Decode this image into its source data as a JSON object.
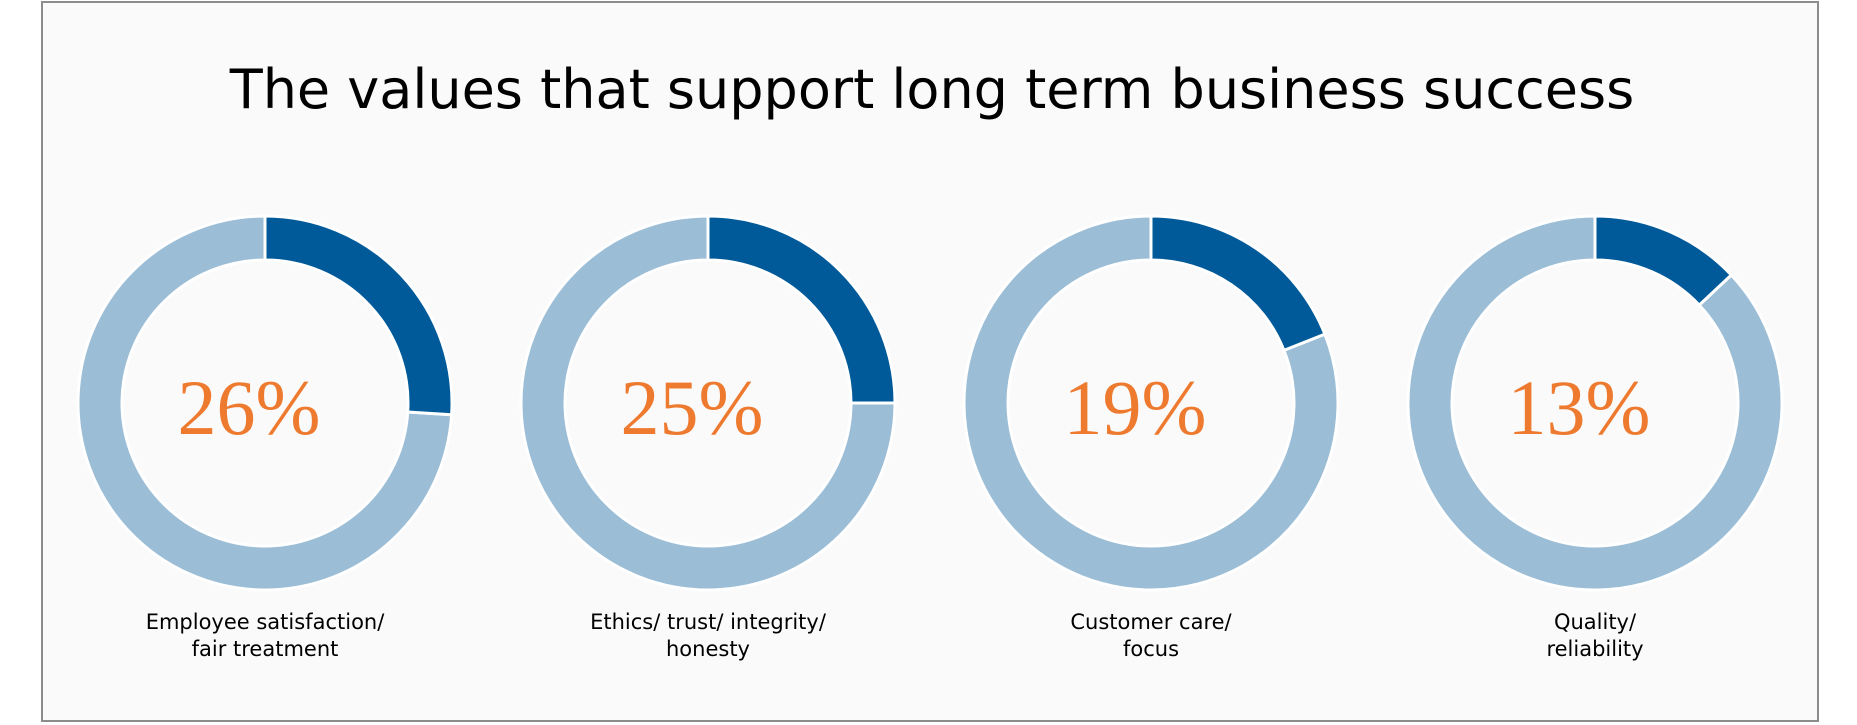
{
  "chart_data": {
    "type": "pie",
    "title": "The values that support long term business success",
    "colors": {
      "highlight": "#005a9a",
      "remainder": "#9bbdd6",
      "value_text": "#ee7a2f"
    },
    "items": [
      {
        "label_lines": [
          "Employee satisfaction/",
          "fair treatment"
        ],
        "value": 26,
        "value_label": "26%"
      },
      {
        "label_lines": [
          "Ethics/ trust/ integrity/",
          "honesty"
        ],
        "value": 25,
        "value_label": "25%"
      },
      {
        "label_lines": [
          "Customer care/",
          "focus"
        ],
        "value": 19,
        "value_label": "19%"
      },
      {
        "label_lines": [
          "Quality/",
          "reliability"
        ],
        "value": 13,
        "value_label": "13%"
      }
    ]
  }
}
